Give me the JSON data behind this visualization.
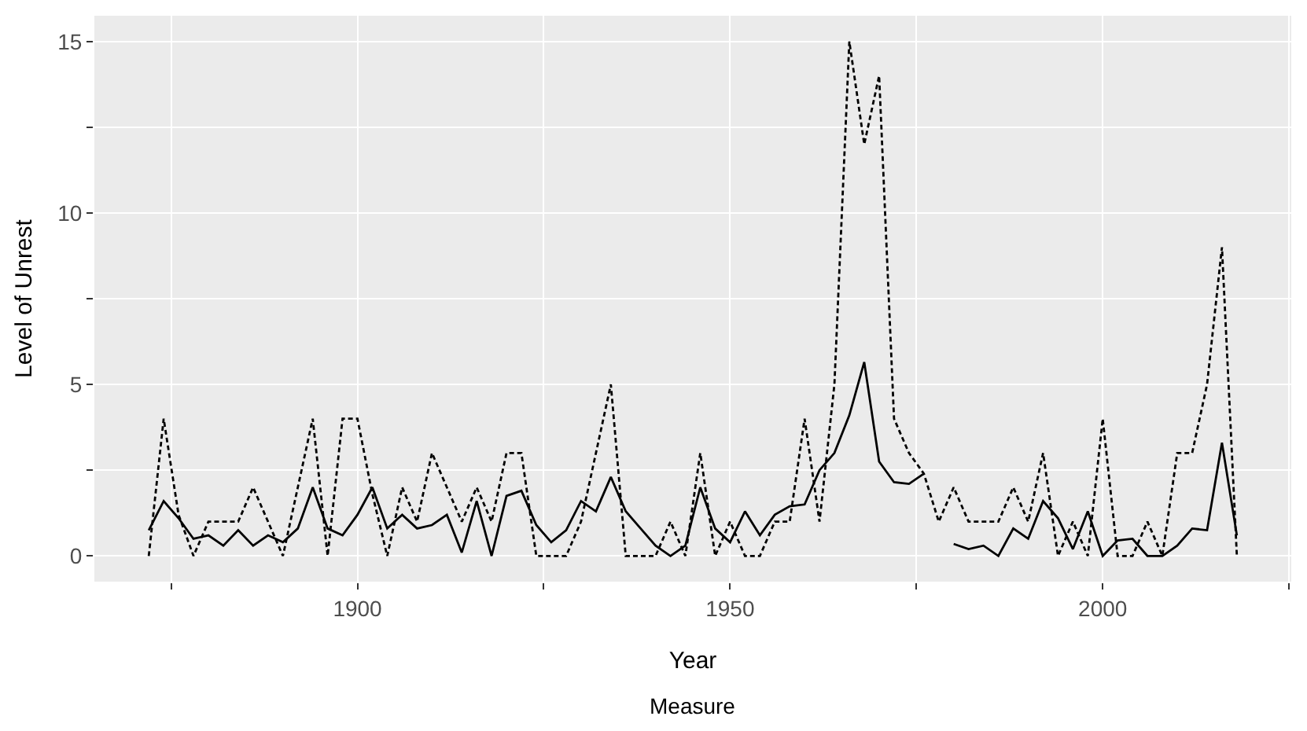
{
  "chart_data": {
    "type": "line",
    "xlabel": "Year",
    "ylabel": "Level of Unrest",
    "annotations": [
      "Measure"
    ],
    "grid": true,
    "marker": "none",
    "x": [
      1872,
      1874,
      1876,
      1878,
      1880,
      1882,
      1884,
      1886,
      1888,
      1890,
      1892,
      1894,
      1896,
      1898,
      1900,
      1902,
      1904,
      1906,
      1908,
      1910,
      1912,
      1914,
      1916,
      1918,
      1920,
      1922,
      1924,
      1926,
      1928,
      1930,
      1932,
      1934,
      1936,
      1938,
      1940,
      1942,
      1944,
      1946,
      1948,
      1950,
      1952,
      1954,
      1956,
      1958,
      1960,
      1962,
      1964,
      1966,
      1968,
      1970,
      1972,
      1974,
      1976,
      1978,
      1980,
      1982,
      1984,
      1986,
      1988,
      1990,
      1992,
      1994,
      1996,
      1998,
      2000,
      2002,
      2004,
      2006,
      2008,
      2010,
      2012,
      2014,
      2016,
      2018
    ],
    "xlim": [
      1864.7,
      2025.3
    ],
    "xticks": [
      {
        "value": 1875,
        "label": null
      },
      1900,
      {
        "value": 1925,
        "label": null
      },
      1950,
      {
        "value": 1975,
        "label": null
      },
      2000,
      {
        "value": 2025,
        "label": null
      }
    ],
    "ylim": [
      -0.75,
      15.75
    ],
    "yticks": [
      0,
      {
        "value": 2.5,
        "label": null
      },
      5,
      {
        "value": 7.5,
        "label": null
      },
      10,
      {
        "value": 12.5,
        "label": null
      },
      15
    ],
    "series": [
      {
        "color": "#000000",
        "line_style": "solid",
        "values": [
          0.75,
          1.6,
          1.1,
          0.5,
          0.6,
          0.3,
          0.75,
          0.3,
          0.6,
          0.4,
          0.8,
          2.0,
          0.8,
          0.6,
          1.2,
          2.0,
          0.8,
          1.2,
          0.8,
          0.9,
          1.2,
          0.1,
          1.6,
          0,
          1.75,
          1.9,
          0.9,
          0.4,
          0.75,
          1.6,
          1.3,
          2.3,
          1.3,
          0.8,
          0.3,
          0,
          0.3,
          2.0,
          0.8,
          0.4,
          1.3,
          0.6,
          1.2,
          1.45,
          1.5,
          2.5,
          3.0,
          4.1,
          5.65,
          2.75,
          2.15,
          2.1,
          2.4,
          null,
          0.35,
          0.2,
          0.3,
          0,
          0.8,
          0.5,
          1.6,
          1.1,
          0.2,
          1.3,
          0,
          0.45,
          0.5,
          0,
          0,
          0.3,
          0.8,
          0.75,
          3.3,
          0.6
        ]
      },
      {
        "color": "#000000",
        "line_style": "dashed",
        "values": [
          0,
          4,
          1.2,
          0,
          1,
          1,
          1,
          2,
          1,
          0,
          2,
          4,
          0,
          4,
          4,
          1.8,
          0,
          2,
          1,
          3,
          2,
          1,
          2,
          1,
          3,
          3,
          0,
          0,
          0,
          1,
          3,
          5,
          0,
          0,
          0,
          1,
          0,
          3,
          0,
          1,
          0,
          0,
          1,
          1,
          4,
          1,
          5,
          15,
          12,
          14,
          4,
          3,
          2.4,
          1,
          2,
          1,
          1,
          1,
          2,
          1,
          3,
          0,
          1,
          0,
          4,
          0,
          0,
          1,
          0,
          3,
          3,
          5,
          9,
          0
        ]
      }
    ]
  }
}
